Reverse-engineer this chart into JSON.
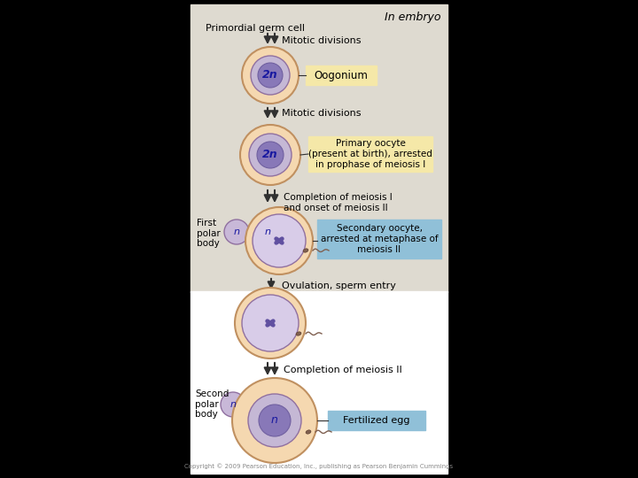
{
  "bg_color": "#000000",
  "panel_color": "#dedad0",
  "white_bg": "#ffffff",
  "in_embryo_text": "In embryo",
  "primordial_text": "Primordial germ cell",
  "mitotic1_text": "Mitotic divisions",
  "oogonium_text": "Oogonium",
  "mitotic2_text": "Mitotic divisions",
  "primary_oocyte_text": "Primary oocyte\n(present at birth), arrested\nin prophase of meiosis I",
  "completion_text": "Completion of meiosis I\nand onset of meiosis II",
  "first_polar_text": "First\npolar\nbody",
  "secondary_text": "Secondary oocyte,\narrested at metaphase of\nmeiosis II",
  "ovulation_text": "Ovulation, sperm entry",
  "completion2_text": "Completion of meiosis II",
  "second_polar_text": "Second\npolar\nbody",
  "fertilized_text": "Fertilized egg",
  "cell_outer_color": "#f5d8b0",
  "cell_inner_color": "#c5b8d5",
  "cell_nucleus_color": "#8878b8",
  "label_box_color": "#f5e8a8",
  "blue_box_color": "#90c0d8",
  "arrow_color": "#303030",
  "text_color": "#000000",
  "small_cell_color": "#c8b8d8",
  "copyright_text": "Copyright © 2009 Pearson Education, Inc., publishing as Pearson Benjamin Cummings"
}
